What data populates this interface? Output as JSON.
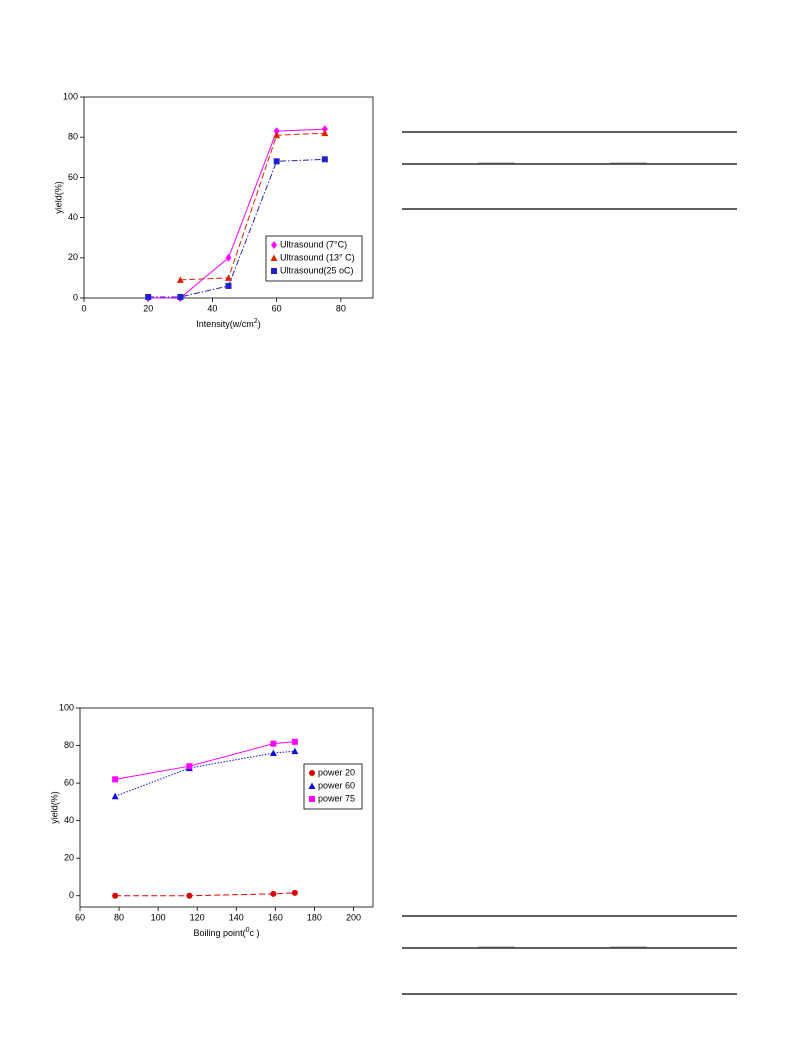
{
  "chart_data": [
    {
      "type": "scatter",
      "ylabel": "yield(%)",
      "xlabel": [
        "Intensity(w/cm",
        "2",
        ")"
      ],
      "xlim": [
        0,
        90
      ],
      "xticks": [
        0,
        20,
        40,
        60,
        80
      ],
      "ylim": [
        0,
        100
      ],
      "yticks": [
        0,
        20,
        40,
        60,
        80,
        100
      ],
      "legend": "lower right",
      "series": [
        {
          "name": "Ultrasound (7°C)",
          "color": "#ff00ff",
          "marker": "diamond",
          "line": "solid",
          "x": [
            20,
            30,
            45,
            60,
            75
          ],
          "values": [
            0,
            0,
            20,
            83,
            84
          ]
        },
        {
          "name": "Ultrasound (13° C)",
          "color": "#dd2200",
          "marker": "triangle",
          "line": "dashed",
          "x": [
            30,
            45,
            60,
            75
          ],
          "values": [
            9,
            10,
            81,
            82
          ]
        },
        {
          "name": "Ultrasound(25 oC)",
          "color": "#2222cc",
          "marker": "square",
          "line": "dashdot",
          "x": [
            20,
            30,
            45,
            60,
            75
          ],
          "values": [
            0.5,
            0.5,
            6,
            68,
            69
          ]
        }
      ]
    },
    {
      "type": "scatter",
      "ylabel": "yield(%)",
      "xlabel": [
        "Boiling point(",
        "0",
        "c )"
      ],
      "xlim": [
        60,
        210
      ],
      "xticks": [
        60,
        80,
        100,
        120,
        140,
        160,
        180,
        200
      ],
      "ylim": [
        -6,
        100
      ],
      "yticks": [
        0,
        20,
        40,
        60,
        80,
        100
      ],
      "legend": "upper right",
      "series": [
        {
          "name": "power 20",
          "color": "#dd0000",
          "marker": "circle",
          "line": "dashed",
          "x": [
            78,
            116,
            159,
            170
          ],
          "values": [
            0,
            0,
            1,
            1.5
          ]
        },
        {
          "name": "power 60",
          "color": "#1111dd",
          "marker": "triangle",
          "line": "dotted",
          "x": [
            78,
            116,
            159,
            170
          ],
          "values": [
            53,
            68,
            76,
            77
          ]
        },
        {
          "name": "power 75",
          "color": "#ff00ff",
          "marker": "square",
          "line": "solid",
          "x": [
            78,
            116,
            159,
            170
          ],
          "values": [
            62,
            69,
            81,
            82
          ]
        }
      ]
    }
  ]
}
